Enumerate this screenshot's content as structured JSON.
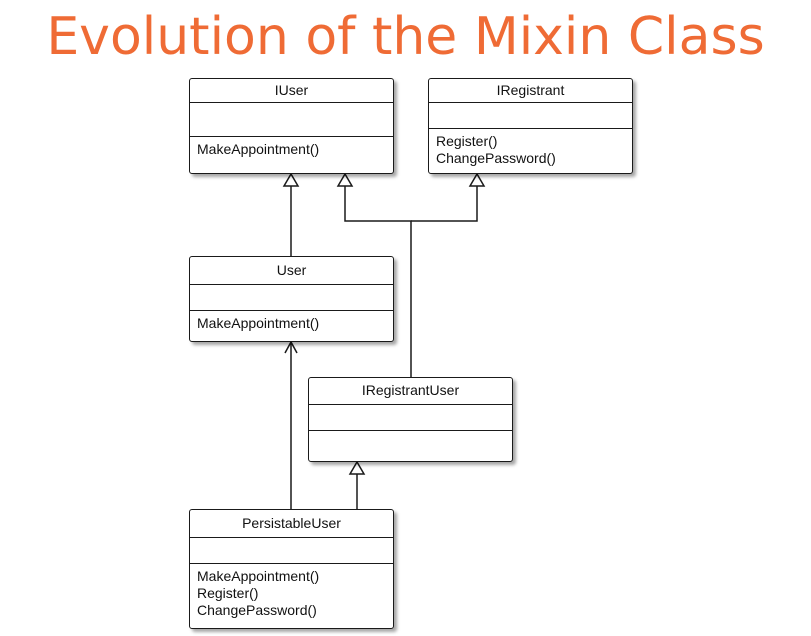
{
  "title": "Evolution of the Mixin Class",
  "classes": {
    "iuser": {
      "name": "IUser",
      "operations": [
        "MakeAppointment()"
      ]
    },
    "iregistrant": {
      "name": "IRegistrant",
      "operations": [
        "Register()",
        "ChangePassword()"
      ]
    },
    "user": {
      "name": "User",
      "operations": [
        "MakeAppointment()"
      ]
    },
    "iregistrantuser": {
      "name": "IRegistrantUser",
      "operations": []
    },
    "persistableuser": {
      "name": "PersistableUser",
      "operations": [
        "MakeAppointment()",
        "Register()",
        "ChangePassword()"
      ]
    }
  }
}
